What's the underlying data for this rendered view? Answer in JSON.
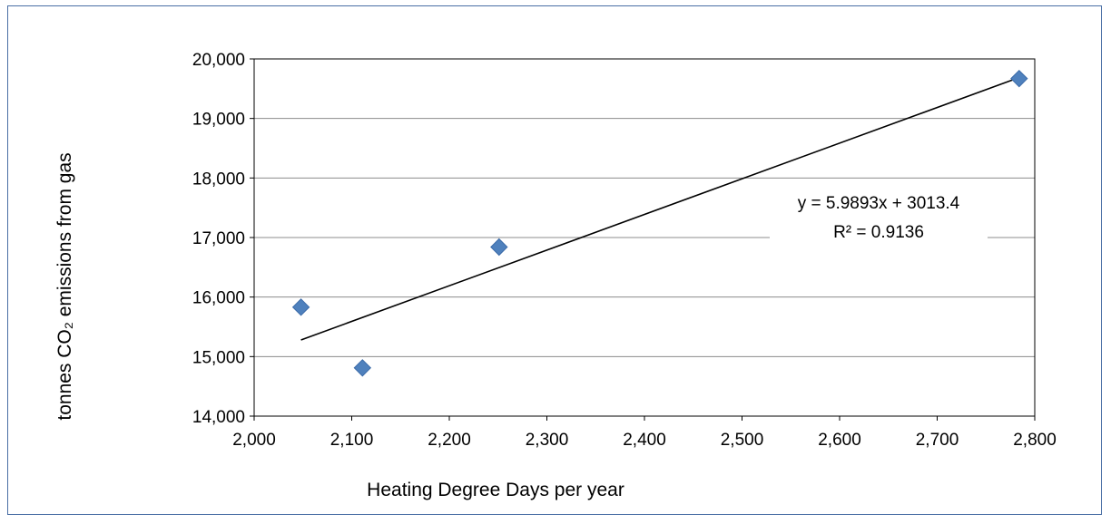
{
  "chart_data": {
    "type": "scatter",
    "title": "",
    "xlabel": "Heating Degree Days per year",
    "ylabel": "tonnes CO₂ emissions  from  gas",
    "xlim": [
      2000,
      2800
    ],
    "ylim": [
      14000,
      20000
    ],
    "x_ticks": [
      2000,
      2100,
      2200,
      2300,
      2400,
      2500,
      2600,
      2700,
      2800
    ],
    "x_tick_labels": [
      "2,000",
      "2,100",
      "2,200",
      "2,300",
      "2,400",
      "2,500",
      "2,600",
      "2,700",
      "2,800"
    ],
    "y_ticks": [
      14000,
      15000,
      16000,
      17000,
      18000,
      19000,
      20000
    ],
    "y_tick_labels": [
      "14,000",
      "15,000",
      "16,000",
      "17,000",
      "18,000",
      "19,000",
      "20,000"
    ],
    "grid": "horizontal",
    "marker": "diamond",
    "colors": {
      "marker": "#4f81bd",
      "trendline": "#000000",
      "gridline": "#8c8c8c",
      "frame": "#4a6fa5"
    },
    "points": [
      {
        "x": 2048,
        "y": 15830
      },
      {
        "x": 2111,
        "y": 14810
      },
      {
        "x": 2251,
        "y": 16840
      },
      {
        "x": 2784,
        "y": 19670
      }
    ],
    "trendline": {
      "type": "linear",
      "slope": 5.9893,
      "intercept": 3013.4,
      "x_range": [
        2048,
        2784
      ],
      "equation_label": "y = 5.9893x + 3013.4",
      "r2_label": "R² = 0.9136"
    }
  }
}
